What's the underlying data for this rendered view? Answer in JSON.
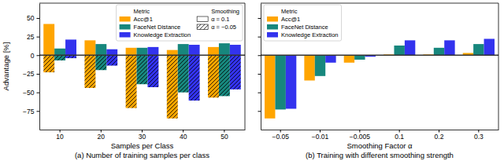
{
  "chart_data": [
    {
      "type": "bar",
      "caption": "(a) Number of training samples per class",
      "x_label": "Samples per Class",
      "y_label": "Advantage [%]",
      "categories": [
        "10",
        "20",
        "30",
        "40",
        "50"
      ],
      "legend": "upper right",
      "legend_title": "Metric",
      "smoothing_title": "Smoothing",
      "series": [
        {
          "name": "Acc@1",
          "color": "#ffa500",
          "smoothing": "α = 0.1",
          "line_style": "solid",
          "values": [
            42,
            20,
            10,
            7,
            11
          ]
        },
        {
          "name": "FaceNet Distance",
          "color": "#17877d",
          "smoothing": "α = 0.1",
          "line_style": "solid",
          "values": [
            9,
            15,
            10,
            15,
            16
          ]
        },
        {
          "name": "Knowledge Extraction",
          "color": "#3333ee",
          "smoothing": "α = 0.1",
          "line_style": "solid",
          "values": [
            21,
            8,
            11,
            14,
            14
          ]
        },
        {
          "name": "Acc@1",
          "color": "#ffa500",
          "smoothing": "α = −0.05",
          "line_style": "hatched",
          "values": [
            -23,
            -44,
            -71,
            -85,
            -57
          ]
        },
        {
          "name": "FaceNet Distance",
          "color": "#17877d",
          "smoothing": "α = −0.05",
          "line_style": "hatched",
          "values": [
            -7,
            -20,
            -39,
            -50,
            -55
          ]
        },
        {
          "name": "Knowledge Extraction",
          "color": "#3333ee",
          "smoothing": "α = −0.05",
          "line_style": "hatched",
          "values": [
            -4,
            -14,
            -43,
            -61,
            -46
          ]
        }
      ],
      "ylim": [
        -100,
        70
      ],
      "yticks": [
        {
          "value": -75,
          "label": "−75"
        },
        {
          "value": -50,
          "label": "−50"
        },
        {
          "value": -25,
          "label": "−25"
        },
        0,
        25,
        50
      ],
      "grid": false,
      "tick_labels": true
    },
    {
      "type": "bar",
      "caption": "(b) Training with different smoothing strength",
      "x_label": "Smoothing Factor α",
      "categories": [
        "−0.05",
        "−0.01",
        "−0.005",
        "0.1",
        "0.2",
        "0.3"
      ],
      "legend": "upper left",
      "legend_title": "Metric",
      "series": [
        {
          "name": "Acc@1",
          "color": "#ffa500",
          "values": [
            -85,
            -34,
            -10,
            1,
            1,
            3
          ]
        },
        {
          "name": "FaceNet Distance",
          "color": "#17877d",
          "values": [
            -73,
            -28,
            -6,
            13,
            10,
            15
          ]
        },
        {
          "name": "Knowledge Extraction",
          "color": "#3333ee",
          "values": [
            -72,
            -10,
            -2,
            20,
            20,
            22
          ]
        }
      ],
      "ylim": [
        -100,
        70
      ],
      "yticks": [
        -75,
        -50,
        -25,
        0,
        25,
        50
      ],
      "grid": false,
      "tick_labels": "x"
    }
  ]
}
